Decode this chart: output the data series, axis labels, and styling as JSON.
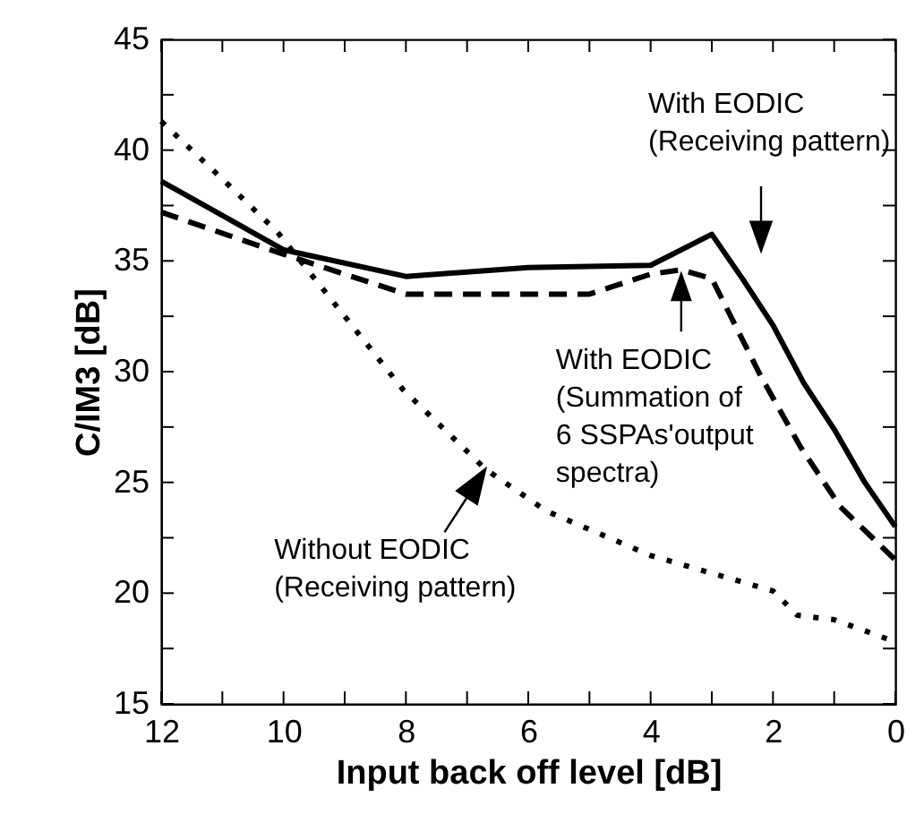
{
  "chart_data": {
    "type": "line",
    "xlabel": "Input back off level [dB]",
    "ylabel": "C/IM3 [dB]",
    "xlim": [
      12,
      0
    ],
    "ylim": [
      15,
      45
    ],
    "xticks": [
      12,
      {
        "value": 11,
        "label": null
      },
      10,
      {
        "value": 9,
        "label": null
      },
      8,
      {
        "value": 7,
        "label": null
      },
      6,
      {
        "value": 5,
        "label": null
      },
      4,
      {
        "value": 3,
        "label": null
      },
      2,
      {
        "value": 1,
        "label": null
      },
      0
    ],
    "yticks": [
      15,
      {
        "value": 17.5,
        "label": null
      },
      20,
      {
        "value": 22.5,
        "label": null
      },
      25,
      {
        "value": 27.5,
        "label": null
      },
      30,
      {
        "value": 32.5,
        "label": null
      },
      35,
      {
        "value": 37.5,
        "label": null
      },
      40,
      {
        "value": 42.5,
        "label": null
      },
      45
    ],
    "grid": false,
    "marker": "none",
    "series": [
      {
        "color": "#000000",
        "line_style": "solid",
        "x": [
          12,
          10,
          8,
          6,
          4,
          3,
          2.5,
          2,
          1.5,
          1,
          0.5,
          0
        ],
        "values": [
          38.6,
          35.5,
          34.3,
          34.7,
          34.8,
          36.2,
          34.2,
          32.1,
          29.5,
          27.4,
          25,
          23
        ]
      },
      {
        "color": "#000000",
        "line_style": "dashed",
        "x": [
          12,
          10,
          8,
          6,
          5,
          4,
          3.5,
          3,
          2.2,
          1.55,
          0.9,
          0
        ],
        "values": [
          37.2,
          35.3,
          33.5,
          33.5,
          33.5,
          34.4,
          34.6,
          34.2,
          29.8,
          26.6,
          23.9,
          21.5
        ]
      },
      {
        "color": "#000000",
        "line_style": "dotted",
        "x": [
          12,
          11,
          10.1,
          9,
          8.05,
          6.7,
          5.7,
          4,
          2,
          1.6,
          1,
          0
        ],
        "values": [
          41.3,
          38.7,
          36.3,
          32.5,
          29.2,
          25.6,
          23.7,
          21.7,
          20.1,
          19,
          18.8,
          17.8
        ]
      }
    ],
    "annotations": [
      "With EODIC\n(Receiving pattern)",
      {
        "text": "With EODIC\n(Summation of\n6 SSPAs'output\nspectra)",
        "x": 3.5,
        "y": 34.4
      },
      {
        "text": "Without EODIC\n(Receiving pattern)",
        "x": 6.7,
        "y": 25.6
      }
    ]
  }
}
